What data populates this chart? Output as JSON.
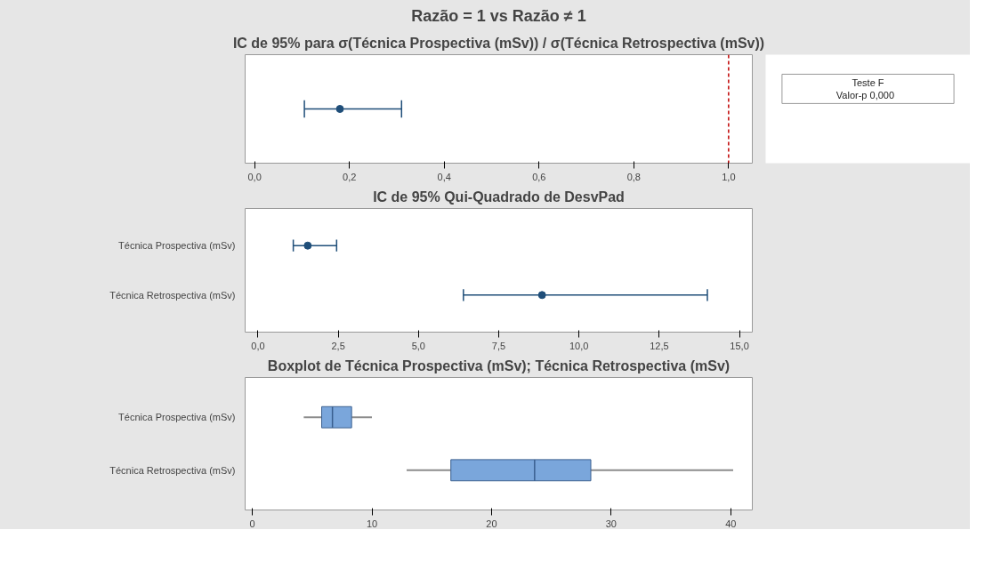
{
  "chart_data": [
    {
      "type": "scatter",
      "title": "Razão = 1 vs Razão ≠ 1",
      "subtitle": "IC de 95% para σ(Técnica Prospectiva (mSv)) / σ(Técnica Retrospectiva (mSv))",
      "orientation": "horizontal",
      "categories": [
        null
      ],
      "values": [
        0.18
      ],
      "errors": [
        [
          0.105,
          0.31
        ]
      ],
      "color": "#1f4e79",
      "marker": "circle",
      "xlim": [
        -0.02,
        1.05
      ],
      "xticks": [
        {
          "value": 0,
          "label": "0,0"
        },
        {
          "value": 0.2,
          "label": "0,2"
        },
        {
          "value": 0.4,
          "label": "0,4"
        },
        {
          "value": 0.6,
          "label": "0,6"
        },
        {
          "value": 0.8,
          "label": "0,8"
        },
        {
          "value": 1.0,
          "label": "1,0"
        }
      ],
      "ref_lines": [
        {
          "axis": "x",
          "value": 1.0,
          "color": "#c00000",
          "line_style": "dashed"
        }
      ],
      "grid": false
    },
    {
      "type": "other",
      "annotations": [
        "Teste F",
        "Valor-p   0,000"
      ]
    },
    {
      "type": "scatter",
      "title": "IC de 95% Qui-Quadrado de DesvPad",
      "orientation": "horizontal",
      "categories": [
        "Técnica Prospectiva (mSv)",
        "Técnica Retrospectiva (mSv)"
      ],
      "values": [
        1.55,
        8.85
      ],
      "errors": [
        [
          1.1,
          2.45
        ],
        [
          6.4,
          14.0
        ]
      ],
      "color": "#1f4e79",
      "marker": "circle",
      "xlim": [
        -0.4,
        15.4
      ],
      "xticks": [
        {
          "value": 0,
          "label": "0,0"
        },
        {
          "value": 2.5,
          "label": "2,5"
        },
        {
          "value": 5,
          "label": "5,0"
        },
        {
          "value": 7.5,
          "label": "7,5"
        },
        {
          "value": 10,
          "label": "10,0"
        },
        {
          "value": 12.5,
          "label": "12,5"
        },
        {
          "value": 15,
          "label": "15,0"
        }
      ],
      "grid": false
    },
    {
      "type": "box",
      "title": "Boxplot de Técnica Prospectiva (mSv); Técnica Retrospectiva (mSv)",
      "orientation": "horizontal",
      "categories": [
        "Técnica Prospectiva (mSv)",
        "Técnica Retrospectiva (mSv)"
      ],
      "boxes": [
        {
          "low": 4.3,
          "q1": 5.8,
          "median": 6.7,
          "q3": 8.3,
          "high": 10.0
        },
        {
          "low": 12.9,
          "q1": 16.6,
          "median": 23.6,
          "q3": 28.3,
          "high": 40.2
        }
      ],
      "color": "#7aa6db",
      "xlim": [
        -0.6,
        41.8
      ],
      "xticks": [
        0,
        10,
        20,
        30,
        40
      ],
      "grid": false
    }
  ]
}
